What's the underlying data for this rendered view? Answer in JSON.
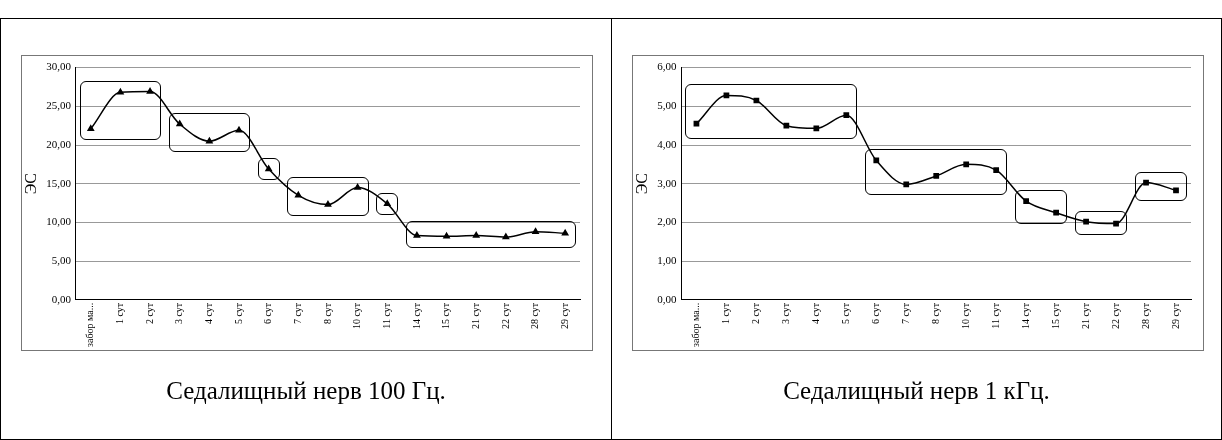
{
  "chart_data": [
    {
      "type": "line",
      "title": "Седалищный нерв 100 Гц.",
      "ylabel": "ЭС",
      "categories": [
        "забор ма...",
        "1 сут",
        "2 сут",
        "3 сут",
        "4 сут",
        "5 сут",
        "6 сут",
        "7 сут",
        "8 сут",
        "10 сут",
        "11 сут",
        "14 сут",
        "15 сут",
        "21 сут",
        "22 сут",
        "28 сут",
        "29 сут"
      ],
      "series": [
        {
          "color": "#000000",
          "values": [
            22.1,
            26.8,
            26.9,
            22.7,
            20.5,
            21.9,
            16.9,
            13.5,
            12.3,
            14.5,
            12.4,
            8.3,
            8.2,
            8.3,
            8.1,
            8.8,
            8.6
          ]
        }
      ],
      "ylim": [
        0,
        30
      ],
      "yticks": [
        {
          "value": 0,
          "label": "0,00"
        },
        {
          "value": 5,
          "label": "5,00"
        },
        {
          "value": 10,
          "label": "10,00"
        },
        {
          "value": 15,
          "label": "15,00"
        },
        {
          "value": 20,
          "label": "20,00"
        },
        {
          "value": 25,
          "label": "25,00"
        },
        {
          "value": 30,
          "label": "30,00"
        }
      ],
      "grid": "y",
      "legend": false,
      "marker": "triangle",
      "line_style": "solid"
    },
    {
      "type": "line",
      "title": "Седалищный нерв 1 кГц.",
      "ylabel": "ЭС",
      "categories": [
        "забор ма...",
        "1 сут",
        "2 сут",
        "3 сут",
        "4 сут",
        "5 сут",
        "6 сут",
        "7 сут",
        "8 сут",
        "10 сут",
        "11 сут",
        "14 сут",
        "15 сут",
        "21 сут",
        "22 сут",
        "28 сут",
        "29 сут"
      ],
      "series": [
        {
          "color": "#000000",
          "values": [
            4.55,
            5.28,
            5.15,
            4.5,
            4.43,
            4.77,
            3.6,
            2.98,
            3.2,
            3.5,
            3.35,
            2.55,
            2.25,
            2.02,
            1.97,
            3.03,
            2.83
          ]
        }
      ],
      "ylim": [
        0,
        6
      ],
      "yticks": [
        {
          "value": 0,
          "label": "0,00"
        },
        {
          "value": 1,
          "label": "1,00"
        },
        {
          "value": 2,
          "label": "2,00"
        },
        {
          "value": 3,
          "label": "3,00"
        },
        {
          "value": 4,
          "label": "4,00"
        },
        {
          "value": 5,
          "label": "5,00"
        },
        {
          "value": 6,
          "label": "6,00"
        }
      ],
      "grid": "y",
      "legend": false,
      "marker": "square",
      "line_style": "solid"
    }
  ]
}
